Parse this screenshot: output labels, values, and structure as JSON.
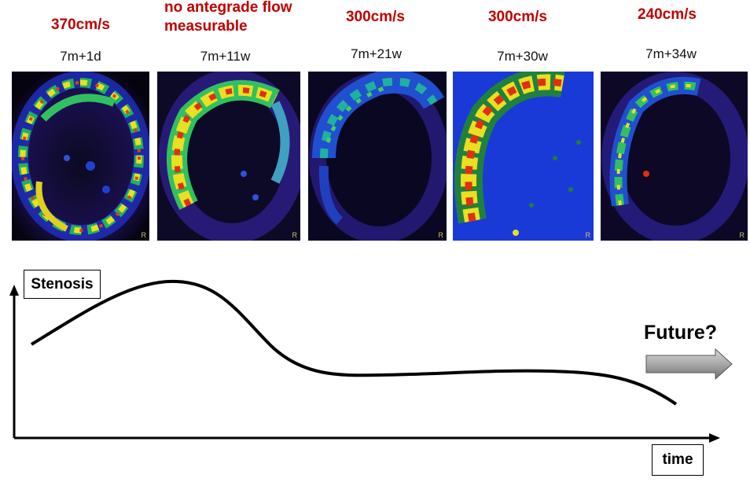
{
  "timepoints": [
    {
      "velocity": "370cm/s",
      "time": "7m+1d"
    },
    {
      "velocity": "no antegrade flow measurable",
      "velocity_line1": "no antegrade flow",
      "velocity_line2": "measurable",
      "time": "7m+11w"
    },
    {
      "velocity": "300cm/s",
      "time": "7m+21w"
    },
    {
      "velocity": "300cm/s",
      "time": "7m+30w"
    },
    {
      "velocity": "240cm/s",
      "time": "7m+34w"
    }
  ],
  "scan_marker": "R",
  "axis": {
    "y_label": "Stenosis",
    "x_label": "time"
  },
  "future_label": "Future?",
  "colors": {
    "velocity_text": "#c00000",
    "curve": "#000000",
    "arrow_fill": "#9a9a9a"
  }
}
